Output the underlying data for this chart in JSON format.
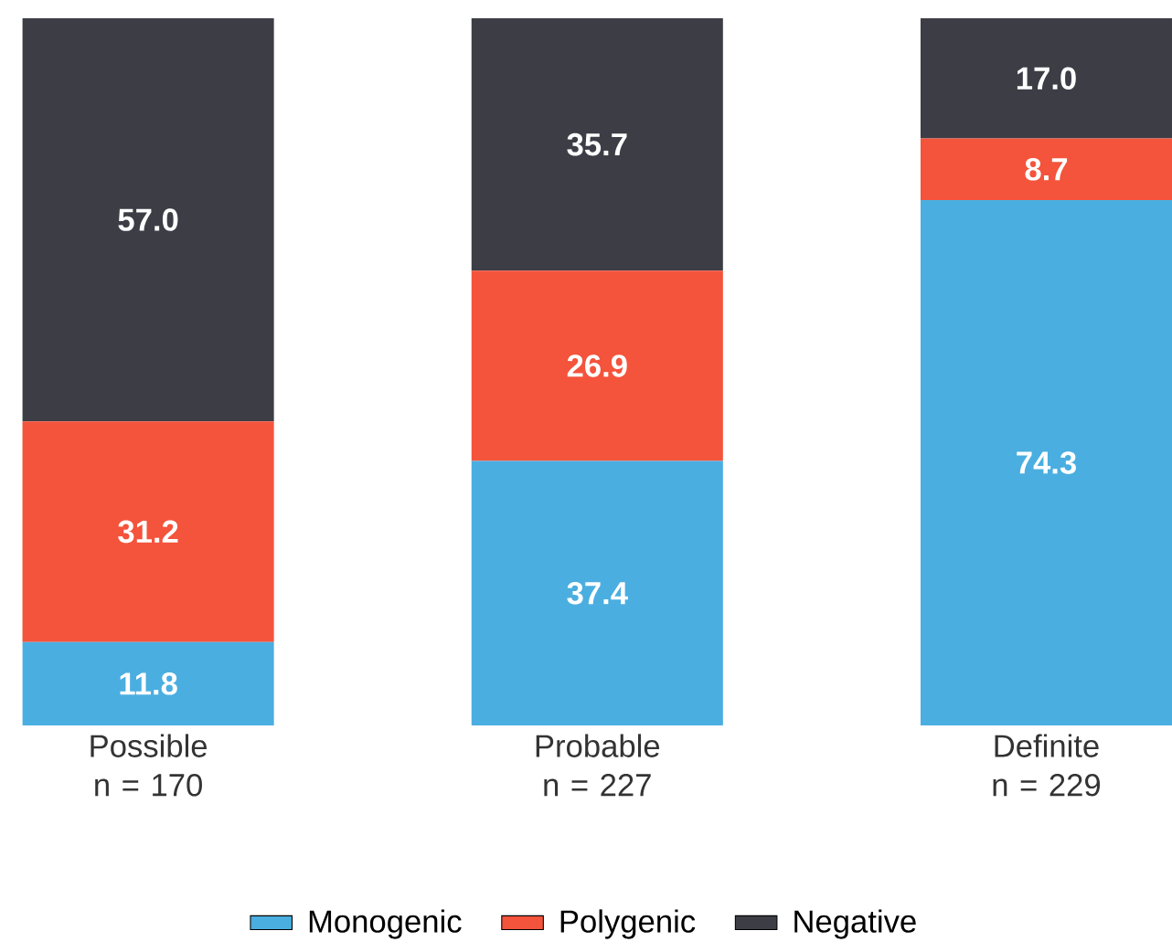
{
  "chart_data": {
    "type": "bar",
    "stacked": true,
    "legend": "bottom",
    "categories": [
      "Possible n = 170",
      "Probable n = 227",
      "Definite n = 229"
    ],
    "series": [
      {
        "name": "Monogenic",
        "color": "#4aaee0",
        "values": [
          11.8,
          37.4,
          74.3
        ],
        "value_labels": [
          "11.8",
          "37.4",
          "74.3"
        ]
      },
      {
        "name": "Polygenic",
        "color": "#f4533c",
        "values": [
          31.2,
          26.9,
          8.7
        ],
        "value_labels": [
          "31.2",
          "26.9",
          "8.7"
        ]
      },
      {
        "name": "Negative",
        "color": "#3c3d45",
        "values": [
          57.0,
          35.7,
          17.0
        ],
        "value_labels": [
          "57.0",
          "35.7",
          "17.0"
        ]
      }
    ]
  }
}
